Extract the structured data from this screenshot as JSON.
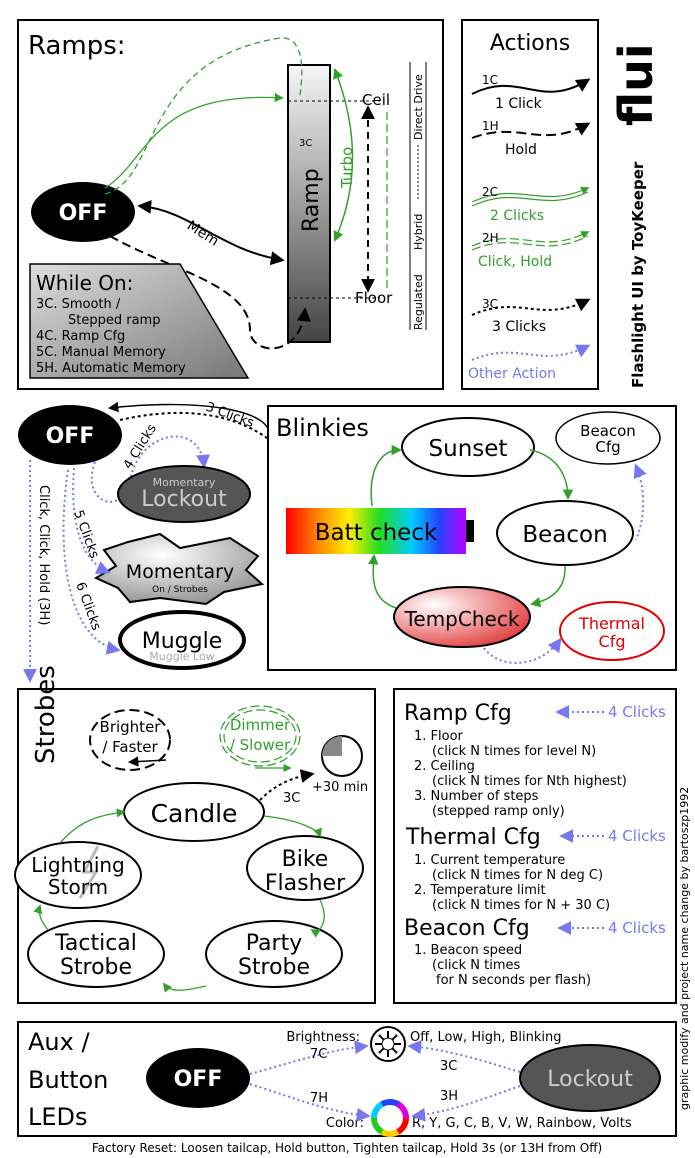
{
  "ramps": {
    "title": "Ramps:",
    "off": "OFF",
    "ramp": "Ramp",
    "three_c": "3C",
    "turbo": "Turbo",
    "ceil": "Ceil",
    "floor": "Floor",
    "mem": "Mem",
    "direct_drive": "Direct Drive",
    "hybrid": "Hybrid",
    "regulated": "Regulated",
    "while_on_title": "While On:",
    "while_on_items": [
      "3C. Smooth /",
      "Stepped ramp",
      "4C. Ramp Cfg",
      "5C. Manual Memory",
      "5H. Automatic Memory"
    ]
  },
  "actions": {
    "title": "Actions",
    "items": [
      {
        "code": "1C",
        "label": "1 Click"
      },
      {
        "code": "1H",
        "label": "Hold"
      },
      {
        "code": "2C",
        "label": "2 Clicks"
      },
      {
        "code": "2H",
        "label": "Click, Hold"
      },
      {
        "code": "3C",
        "label": "3 Clicks"
      },
      {
        "code": "",
        "label": "Other Action"
      }
    ]
  },
  "brand": {
    "logo": "flui",
    "subtitle": "Flashlight UI by ToyKeeper"
  },
  "main": {
    "off": "OFF",
    "three_clicks": "3 Clicks",
    "four_clicks": "4 Clicks",
    "five_clicks": "5 Clicks",
    "six_clicks": "6 Clicks",
    "click_click_hold": "Click, Click, Hold (3H)",
    "lockout_top": "Momentary",
    "lockout": "Lockout",
    "momentary": "Momentary",
    "momentary_sub": "On / Strobes",
    "muggle": "Muggle",
    "muggle_sub": "Muggle Low"
  },
  "blinkies": {
    "title": "Blinkies",
    "sunset": "Sunset",
    "beacon_cfg": [
      "Beacon",
      "Cfg"
    ],
    "batt_check": "Batt check",
    "beacon": "Beacon",
    "temp_check": "TempCheck",
    "thermal_cfg": [
      "Thermal",
      "Cfg"
    ]
  },
  "strobes": {
    "title": "Strobes",
    "brighter": [
      "Brighter",
      "/ Faster"
    ],
    "dimmer": [
      "Dimmer",
      "/ Slower"
    ],
    "three_c": "3C",
    "thirty_min": "+30 min",
    "candle": "Candle",
    "bike": [
      "Bike",
      "Flasher"
    ],
    "lightning": [
      "Lightning",
      "Storm"
    ],
    "party": [
      "Party",
      "Strobe"
    ],
    "tactical": [
      "Tactical",
      "Strobe"
    ]
  },
  "config": {
    "ramp_title": "Ramp Cfg",
    "ramp_items": [
      "1. Floor",
      "(click N times for level N)",
      "2. Ceiling",
      "(click N times for Nth highest)",
      "3. Number of steps",
      "(stepped ramp only)"
    ],
    "thermal_title": "Thermal Cfg",
    "thermal_items": [
      "1. Current temperature",
      "(click N times for N deg C)",
      "2. Temperature limit",
      "(click N times for N + 30 C)"
    ],
    "beacon_title": "Beacon Cfg",
    "beacon_items": [
      "1. Beacon speed",
      "(click N times",
      "for N seconds per flash)"
    ],
    "four_clicks": "4 Clicks"
  },
  "aux": {
    "title": [
      "Aux /",
      "Button",
      "LEDs"
    ],
    "off": "OFF",
    "lockout": "Lockout",
    "brightness_label": "Brightness:",
    "brightness_values": "Off, Low, High, Blinking",
    "color_label": "Color:",
    "color_values": "R, Y, G, C, B, V, W, Rainbow, Volts",
    "seven_c": "7C",
    "seven_h": "7H",
    "three_c": "3C",
    "three_h": "3H"
  },
  "credit": "graphic modify and project name change by bartoszp1992",
  "footer": "Factory Reset: Loosen tailcap, Hold button, Tighten tailcap, Hold 3s   (or 13H from Off)",
  "colors": {
    "green": "#33a02c",
    "purple": "#7777ee",
    "red": "#e00000",
    "dark_gray": "#505050"
  }
}
